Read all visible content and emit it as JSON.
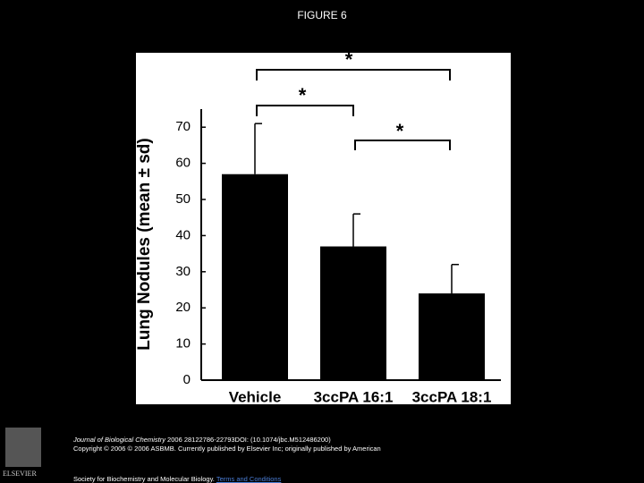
{
  "page_title": "FIGURE 6",
  "chart_data": {
    "type": "bar",
    "ylabel": "Lung Nodules (mean ± sd)",
    "categories": [
      "Vehicle",
      "3ccPA 16:1",
      "3ccPA 18:1"
    ],
    "values": [
      57,
      37,
      24
    ],
    "errors": [
      14,
      9,
      8
    ],
    "color": "#000000",
    "ylim": [
      0,
      75
    ],
    "yticks": [
      0,
      10,
      20,
      30,
      40,
      50,
      60,
      70
    ],
    "annotations": [
      "*",
      "*",
      "*"
    ]
  },
  "footer": {
    "publisher": "ELSEVIER",
    "journal": "Journal of Biological Chemistry",
    "citation": " 2006 28122786-22793DOI: (10.1074/jbc.M512486200)",
    "copyright": "Copyright © 2006 © 2006 ASBMB. Currently published by Elsevier Inc; originally published by American",
    "society": "Society for Biochemistry and Molecular Biology.",
    "link": "Terms and Conditions"
  }
}
